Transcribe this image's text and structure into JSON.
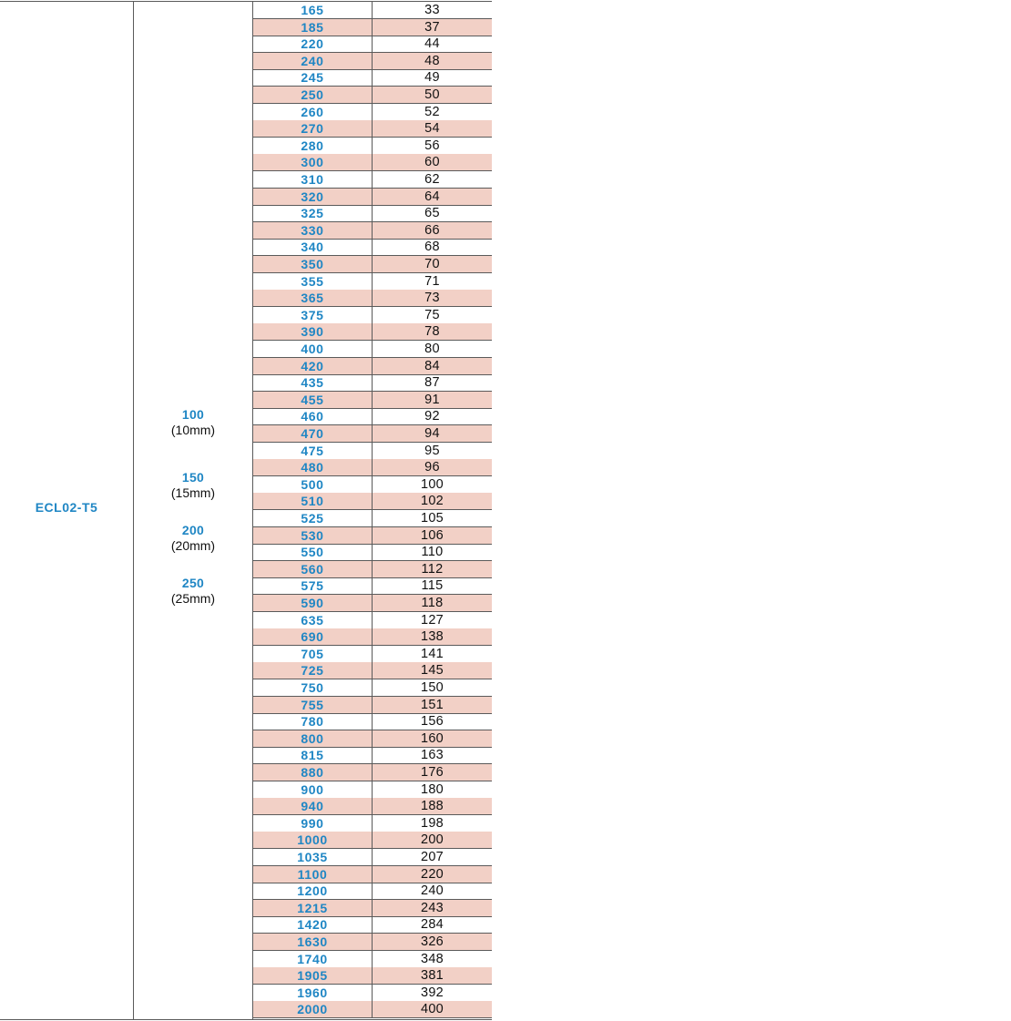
{
  "model": "ECL02-T5",
  "widths": [
    {
      "value": "100",
      "mm": "(10mm)"
    },
    {
      "value": "150",
      "mm": "(15mm)"
    },
    {
      "value": "200",
      "mm": "(20mm)"
    },
    {
      "value": "250",
      "mm": "(25mm)"
    }
  ],
  "rows": [
    {
      "length": "165",
      "teeth": "33"
    },
    {
      "length": "185",
      "teeth": "37"
    },
    {
      "length": "220",
      "teeth": "44"
    },
    {
      "length": "240",
      "teeth": "48"
    },
    {
      "length": "245",
      "teeth": "49"
    },
    {
      "length": "250",
      "teeth": "50"
    },
    {
      "length": "260",
      "teeth": "52"
    },
    {
      "length": "270",
      "teeth": "54"
    },
    {
      "length": "280",
      "teeth": "56"
    },
    {
      "length": "300",
      "teeth": "60"
    },
    {
      "length": "310",
      "teeth": "62"
    },
    {
      "length": "320",
      "teeth": "64"
    },
    {
      "length": "325",
      "teeth": "65"
    },
    {
      "length": "330",
      "teeth": "66"
    },
    {
      "length": "340",
      "teeth": "68"
    },
    {
      "length": "350",
      "teeth": "70"
    },
    {
      "length": "355",
      "teeth": "71"
    },
    {
      "length": "365",
      "teeth": "73"
    },
    {
      "length": "375",
      "teeth": "75"
    },
    {
      "length": "390",
      "teeth": "78"
    },
    {
      "length": "400",
      "teeth": "80"
    },
    {
      "length": "420",
      "teeth": "84"
    },
    {
      "length": "435",
      "teeth": "87"
    },
    {
      "length": "455",
      "teeth": "91"
    },
    {
      "length": "460",
      "teeth": "92"
    },
    {
      "length": "470",
      "teeth": "94"
    },
    {
      "length": "475",
      "teeth": "95"
    },
    {
      "length": "480",
      "teeth": "96"
    },
    {
      "length": "500",
      "teeth": "100"
    },
    {
      "length": "510",
      "teeth": "102"
    },
    {
      "length": "525",
      "teeth": "105"
    },
    {
      "length": "530",
      "teeth": "106"
    },
    {
      "length": "550",
      "teeth": "110"
    },
    {
      "length": "560",
      "teeth": "112"
    },
    {
      "length": "575",
      "teeth": "115"
    },
    {
      "length": "590",
      "teeth": "118"
    },
    {
      "length": "635",
      "teeth": "127"
    },
    {
      "length": "690",
      "teeth": "138"
    },
    {
      "length": "705",
      "teeth": "141"
    },
    {
      "length": "725",
      "teeth": "145"
    },
    {
      "length": "750",
      "teeth": "150"
    },
    {
      "length": "755",
      "teeth": "151"
    },
    {
      "length": "780",
      "teeth": "156"
    },
    {
      "length": "800",
      "teeth": "160"
    },
    {
      "length": "815",
      "teeth": "163"
    },
    {
      "length": "880",
      "teeth": "176"
    },
    {
      "length": "900",
      "teeth": "180"
    },
    {
      "length": "940",
      "teeth": "188"
    },
    {
      "length": "990",
      "teeth": "198"
    },
    {
      "length": "1000",
      "teeth": "200"
    },
    {
      "length": "1035",
      "teeth": "207"
    },
    {
      "length": "1100",
      "teeth": "220"
    },
    {
      "length": "1200",
      "teeth": "240"
    },
    {
      "length": "1215",
      "teeth": "243"
    },
    {
      "length": "1420",
      "teeth": "284"
    },
    {
      "length": "1630",
      "teeth": "326"
    },
    {
      "length": "1740",
      "teeth": "348"
    },
    {
      "length": "1905",
      "teeth": "381"
    },
    {
      "length": "1960",
      "teeth": "392"
    },
    {
      "length": "2000",
      "teeth": "400"
    }
  ],
  "colors": {
    "accent_blue": "#1f86c4",
    "row_shade": "#f2d0c6",
    "rule": "#5a5a5a",
    "text": "#111111"
  }
}
